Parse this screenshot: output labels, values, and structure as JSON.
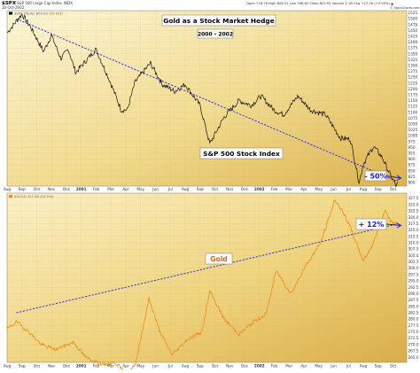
{
  "header": {
    "symbol": "$SPX",
    "name": "S&P 500 Large Cap Index",
    "exchange": "INDX",
    "date": "10-Oct-2002",
    "quote": "Open 776.76  High 806.51  Low 768.63  Close 803.92  Volume 2.1B  Chg +27.16 (+3.50%) ▲",
    "watermark": "© StockCharts.com",
    "legend_upper": "$SPX (Daily) 803.92 (10 Oct)",
    "legend_lower": "$GOLD 317.40 (10 Oct)"
  },
  "chart_data": [
    {
      "type": "line",
      "title": "Gold as a Stock Market Hedge",
      "subtitle": "2000 - 2002",
      "series_label": "S&P 500 Stock Index",
      "annotation": "- 50%",
      "y_ticks": [
        1525,
        1500,
        1475,
        1450,
        1425,
        1400,
        1375,
        1350,
        1325,
        1300,
        1275,
        1250,
        1225,
        1200,
        1175,
        1150,
        1125,
        1100,
        1075,
        1050,
        1025,
        1000,
        975,
        950,
        925,
        900,
        875,
        850,
        825,
        800
      ],
      "ylim": [
        785,
        1535
      ],
      "x_tick_labels": [
        "Aug",
        "Sep",
        "Oct",
        "Nov",
        "Dec",
        "2001",
        "Feb",
        "Mar",
        "Apr",
        "May",
        "Jun",
        "Jul",
        "Aug",
        "Sep",
        "Oct",
        "Nov",
        "Dec",
        "2002",
        "Feb",
        "Mar",
        "Apr",
        "May",
        "Jun",
        "Jul",
        "Aug",
        "Sep",
        "Oct"
      ],
      "x_start": "2000-08",
      "x_end": "2002-10",
      "key_points": [
        {
          "t": "2000-08",
          "v": 1440
        },
        {
          "t": "2000-08-20",
          "v": 1490
        },
        {
          "t": "2000-09-01",
          "v": 1520
        },
        {
          "t": "2000-09-20",
          "v": 1460
        },
        {
          "t": "2000-10-15",
          "v": 1360
        },
        {
          "t": "2000-10-31",
          "v": 1430
        },
        {
          "t": "2000-11-20",
          "v": 1330
        },
        {
          "t": "2000-12-05",
          "v": 1370
        },
        {
          "t": "2000-12-20",
          "v": 1270
        },
        {
          "t": "2001-01-31",
          "v": 1370
        },
        {
          "t": "2001-02-28",
          "v": 1240
        },
        {
          "t": "2001-03-22",
          "v": 1110
        },
        {
          "t": "2001-04-04",
          "v": 1110
        },
        {
          "t": "2001-04-20",
          "v": 1230
        },
        {
          "t": "2001-05-21",
          "v": 1310
        },
        {
          "t": "2001-06-15",
          "v": 1220
        },
        {
          "t": "2001-07-10",
          "v": 1190
        },
        {
          "t": "2001-08-01",
          "v": 1220
        },
        {
          "t": "2001-09-01",
          "v": 1130
        },
        {
          "t": "2001-09-21",
          "v": 965
        },
        {
          "t": "2001-10-20",
          "v": 1080
        },
        {
          "t": "2001-11-20",
          "v": 1150
        },
        {
          "t": "2001-12-15",
          "v": 1130
        },
        {
          "t": "2002-01-04",
          "v": 1170
        },
        {
          "t": "2002-01-31",
          "v": 1110
        },
        {
          "t": "2002-02-20",
          "v": 1090
        },
        {
          "t": "2002-03-19",
          "v": 1170
        },
        {
          "t": "2002-04-15",
          "v": 1110
        },
        {
          "t": "2002-05-15",
          "v": 1090
        },
        {
          "t": "2002-06-15",
          "v": 990
        },
        {
          "t": "2002-07-05",
          "v": 985
        },
        {
          "t": "2002-07-23",
          "v": 800
        },
        {
          "t": "2002-08-01",
          "v": 880
        },
        {
          "t": "2002-08-22",
          "v": 955
        },
        {
          "t": "2002-09-10",
          "v": 905
        },
        {
          "t": "2002-09-24",
          "v": 840
        },
        {
          "t": "2002-10-09",
          "v": 780
        },
        {
          "t": "2002-10-10",
          "v": 803.92
        }
      ],
      "trendline": [
        {
          "t": "2000-08-20",
          "v": 1500
        },
        {
          "t": "2002-10-10",
          "v": 805
        }
      ],
      "line_color": "#000000",
      "trend_color": "#2323d8"
    },
    {
      "type": "line",
      "series_label": "Gold",
      "annotation": "+ 12%",
      "y_ticks": [
        327.5,
        325.0,
        322.5,
        320.0,
        317.5,
        315.0,
        312.5,
        310.0,
        307.5,
        305.0,
        302.5,
        300.0,
        297.5,
        295.0,
        292.5,
        290.0,
        287.5,
        285.0,
        282.5,
        280.0,
        277.5,
        275.0,
        272.5,
        270.0,
        267.5,
        265.0
      ],
      "ylim": [
        263,
        329.5
      ],
      "x_tick_labels": [
        "Aug",
        "Sep",
        "Oct",
        "Nov",
        "Dec",
        "2001",
        "Feb",
        "Mar",
        "Apr",
        "May",
        "Jun",
        "Jul",
        "Aug",
        "Sep",
        "Oct",
        "Nov",
        "Dec",
        "2002",
        "Feb",
        "Mar",
        "Apr",
        "May",
        "Jun",
        "Jul",
        "Aug",
        "Sep",
        "Oct"
      ],
      "x_start": "2000-08",
      "x_end": "2002-10",
      "key_points": [
        {
          "t": "2000-08",
          "v": 276
        },
        {
          "t": "2000-08-20",
          "v": 279
        },
        {
          "t": "2000-09-15",
          "v": 275
        },
        {
          "t": "2000-10-10",
          "v": 270
        },
        {
          "t": "2000-11-10",
          "v": 268
        },
        {
          "t": "2000-12-15",
          "v": 271
        },
        {
          "t": "2001-01-10",
          "v": 265
        },
        {
          "t": "2001-02-15",
          "v": 262
        },
        {
          "t": "2001-03-10",
          "v": 263
        },
        {
          "t": "2001-04-03",
          "v": 258
        },
        {
          "t": "2001-04-20",
          "v": 262
        },
        {
          "t": "2001-05-18",
          "v": 288
        },
        {
          "t": "2001-06-10",
          "v": 275
        },
        {
          "t": "2001-07-05",
          "v": 266
        },
        {
          "t": "2001-08-05",
          "v": 272
        },
        {
          "t": "2001-09-05",
          "v": 275
        },
        {
          "t": "2001-09-21",
          "v": 291
        },
        {
          "t": "2001-10-20",
          "v": 280
        },
        {
          "t": "2001-11-20",
          "v": 274
        },
        {
          "t": "2001-12-20",
          "v": 279
        },
        {
          "t": "2002-01-15",
          "v": 282
        },
        {
          "t": "2002-02-05",
          "v": 299
        },
        {
          "t": "2002-03-05",
          "v": 290
        },
        {
          "t": "2002-04-05",
          "v": 301
        },
        {
          "t": "2002-05-05",
          "v": 310
        },
        {
          "t": "2002-06-04",
          "v": 327
        },
        {
          "t": "2002-06-20",
          "v": 322
        },
        {
          "t": "2002-07-05",
          "v": 316
        },
        {
          "t": "2002-08-01",
          "v": 303
        },
        {
          "t": "2002-08-20",
          "v": 309
        },
        {
          "t": "2002-09-15",
          "v": 323
        },
        {
          "t": "2002-09-28",
          "v": 318
        },
        {
          "t": "2002-10-10",
          "v": 317.4
        }
      ],
      "trendline": [
        {
          "t": "2000-08-20",
          "v": 282.5
        },
        {
          "t": "2002-10-10",
          "v": 317.4
        }
      ],
      "line_color": "#f08a18",
      "trend_color": "#2323d8"
    }
  ],
  "colors": {
    "panel_bg_light": "#fbf2cc",
    "panel_bg_dark": "#e8c766",
    "frame": "#8a8a8a"
  }
}
